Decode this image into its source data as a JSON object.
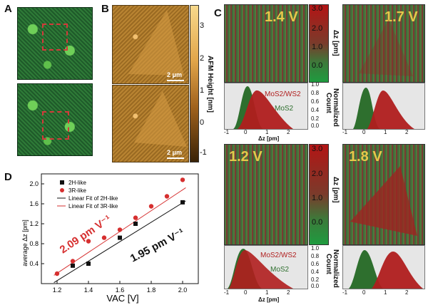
{
  "panels": {
    "A": "A",
    "B": "B",
    "C": "C",
    "D": "D"
  },
  "afm": {
    "colorbar_ticks": [
      "3",
      "2",
      "1",
      "0",
      "-1"
    ],
    "axis_label": "AFM Height [nm]",
    "scalebar_top": "2 μm",
    "scalebar_bottom": "2 μm"
  },
  "panelC": {
    "maps": [
      {
        "voltage": "1.4 V"
      },
      {
        "voltage": "1.7 V"
      },
      {
        "voltage": "1.2 V"
      },
      {
        "voltage": "1.8 V"
      }
    ],
    "colorbar_ticks_top": [
      "3.0",
      "2.0",
      "1.0",
      "0.0"
    ],
    "colorbar_ticks_bottom": [
      "3.0",
      "2.0",
      "1.0",
      "0.0"
    ],
    "colorbar_label": "Δz [pm]",
    "hist_ticks": [
      "1.0",
      "0.8",
      "0.6",
      "0.4",
      "0.2",
      "0.0"
    ],
    "hist_label_a": "Normalized",
    "hist_label_b": "Count",
    "mos2ws2_label": "MoS2/WS2",
    "mos2_label": "MoS2",
    "x_ticks": [
      "-1",
      "0",
      "1",
      "2"
    ],
    "x_label": "Δz [pm]"
  },
  "chart_data": {
    "type": "scatter",
    "title": "",
    "xlabel": "VAC [V]",
    "ylabel": "average Δz [pm]",
    "xlim": [
      1.1,
      2.1
    ],
    "ylim": [
      0.0,
      2.2
    ],
    "x_ticks": [
      "1.2",
      "1.4",
      "1.6",
      "1.8",
      "2.0"
    ],
    "y_ticks": [
      "0.4",
      "0.8",
      "1.2",
      "1.6",
      "2.0"
    ],
    "series": [
      {
        "name": "2H-like",
        "color": "#111111",
        "marker": "square",
        "x": [
          1.3,
          1.4,
          1.6,
          1.7,
          2.0
        ],
        "y": [
          0.36,
          0.4,
          0.92,
          1.2,
          1.63
        ]
      },
      {
        "name": "3R-like",
        "color": "#d62f2f",
        "marker": "circle",
        "x": [
          1.2,
          1.3,
          1.4,
          1.5,
          1.6,
          1.7,
          1.8,
          1.9,
          2.0
        ],
        "y": [
          0.2,
          0.45,
          0.85,
          0.92,
          1.08,
          1.32,
          1.55,
          1.75,
          2.08
        ]
      },
      {
        "name": "Linear Fit of 2H-like",
        "color": "#111111",
        "marker": "line",
        "slope": 1.95,
        "intercept": -2.28
      },
      {
        "name": "Linear Fit of 3R-like",
        "color": "#d62f2f",
        "marker": "line",
        "slope": 2.09,
        "intercept": -2.3
      }
    ],
    "annotations": [
      {
        "text": "2.09 pm V⁻¹",
        "color": "#d62f2f"
      },
      {
        "text": "1.95 pm V⁻¹",
        "color": "#111111"
      }
    ]
  }
}
